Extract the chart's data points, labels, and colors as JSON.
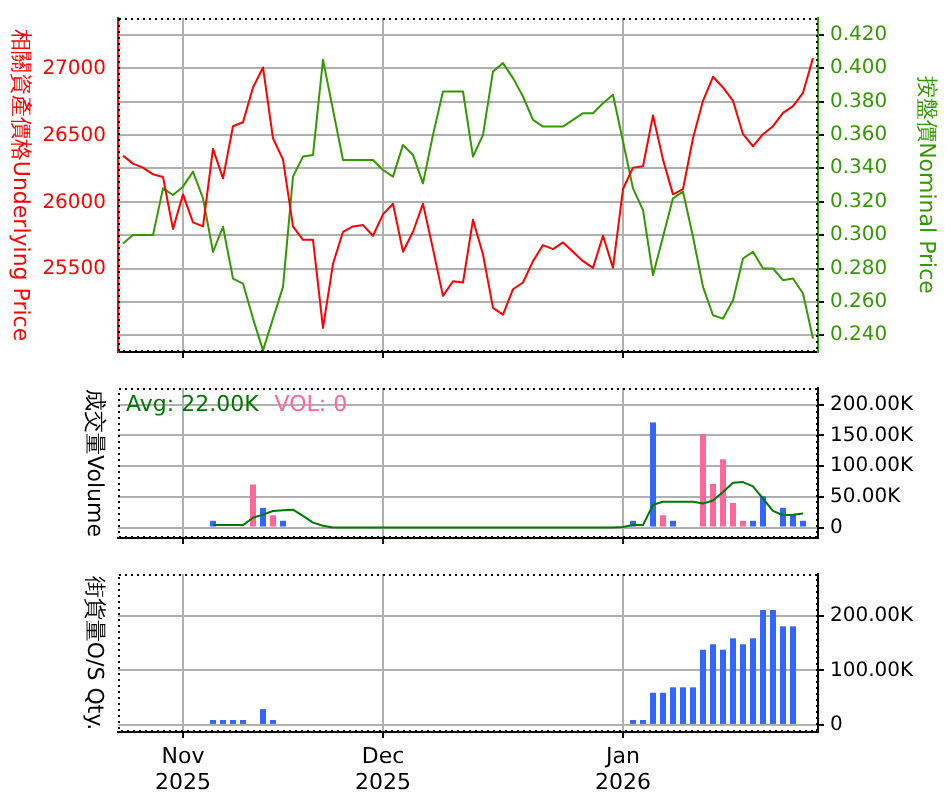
{
  "chart_data": [
    {
      "type": "line",
      "categories": [
        null,
        null,
        null,
        null,
        null,
        null,
        null,
        null,
        null,
        null,
        null,
        null,
        null,
        null,
        null,
        null,
        null,
        null,
        null,
        null,
        null,
        null,
        null,
        null,
        null,
        null,
        null,
        null,
        null,
        null,
        null,
        null,
        null,
        null,
        null,
        null,
        null,
        null,
        null,
        null,
        null,
        null,
        null,
        null,
        null,
        null,
        null,
        null,
        null,
        null,
        null,
        null,
        null,
        null,
        null,
        null,
        null,
        null,
        null,
        null,
        null,
        null,
        null,
        null,
        null,
        null,
        null,
        null,
        null,
        null
      ],
      "series": [
        {
          "color": "#ff0000",
          "values": [
            26350,
            26290,
            26260,
            26210,
            26190,
            25800,
            26060,
            25850,
            25820,
            26400,
            26180,
            26570,
            26600,
            26860,
            27010,
            26480,
            26320,
            25820,
            25720,
            25720,
            25060,
            25540,
            25780,
            25820,
            25830,
            25750,
            25910,
            25990,
            25630,
            25780,
            25990,
            25650,
            25300,
            25410,
            25400,
            25870,
            25610,
            25210,
            25160,
            25350,
            25400,
            25560,
            25680,
            25650,
            25700,
            25630,
            25560,
            25510,
            25750,
            25510,
            26100,
            26260,
            26270,
            26650,
            26320,
            26060,
            26100,
            26480,
            26760,
            26940,
            26860,
            26760,
            26510,
            26420,
            26510,
            26570,
            26670,
            26720,
            26820,
            27080
          ]
        },
        {
          "color": "#339900",
          "axis": "y2",
          "values": [
            0.295,
            0.3,
            0.3,
            0.3,
            0.328,
            0.324,
            0.329,
            0.338,
            0.322,
            0.29,
            0.305,
            0.274,
            0.271,
            0.25,
            0.231,
            0.25,
            0.269,
            0.335,
            0.347,
            0.348,
            0.405,
            0.375,
            0.345,
            0.345,
            0.345,
            0.345,
            0.339,
            0.335,
            0.354,
            0.348,
            0.331,
            0.36,
            0.386,
            0.386,
            0.386,
            0.347,
            0.36,
            0.398,
            0.403,
            0.394,
            0.383,
            0.369,
            0.365,
            0.365,
            0.365,
            0.369,
            0.373,
            0.373,
            0.379,
            0.384,
            0.356,
            0.328,
            0.315,
            0.276,
            0.299,
            0.322,
            0.326,
            0.299,
            0.269,
            0.252,
            0.25,
            0.261,
            0.286,
            0.29,
            0.28,
            0.28,
            0.273,
            0.274,
            0.265,
            0.238
          ]
        }
      ],
      "ylabel": "相關資產價格Underlying Price",
      "y2label": "按盤價Nominal Price",
      "ylim": [
        24880,
        27380
      ],
      "yticks": [
        25500,
        26000,
        26500,
        27000
      ],
      "y2lim": [
        0.23,
        0.43
      ],
      "y2ticks": [
        {
          "value": 0.24,
          "label": "0.240"
        },
        {
          "value": 0.26,
          "label": "0.260"
        },
        {
          "value": 0.28,
          "label": "0.280"
        },
        {
          "value": 0.3,
          "label": "0.300"
        },
        {
          "value": 0.32,
          "label": "0.320"
        },
        {
          "value": 0.34,
          "label": "0.340"
        },
        {
          "value": 0.36,
          "label": "0.360"
        },
        {
          "value": 0.38,
          "label": "0.380"
        },
        {
          "value": 0.4,
          "label": "0.400"
        },
        {
          "value": 0.42,
          "label": "0.420"
        }
      ],
      "grid": true,
      "tick_labels": "y"
    },
    {
      "type": "bar",
      "categories": [
        null,
        null,
        null,
        null,
        null,
        null,
        null,
        null,
        null,
        null,
        null,
        null,
        null,
        null,
        null,
        null,
        null,
        null,
        null,
        null,
        null,
        null,
        null,
        null,
        null,
        null,
        null,
        null,
        null,
        null,
        null,
        null,
        null,
        null,
        null,
        null,
        null,
        null,
        null,
        null,
        null,
        null,
        null,
        null,
        null,
        null,
        null,
        null,
        null,
        null,
        null,
        null,
        null,
        null,
        null,
        null,
        null,
        null,
        null,
        null,
        null,
        null,
        null,
        null,
        null,
        null,
        null,
        null,
        null,
        null
      ],
      "series": [
        {
          "type": "line",
          "name": "Avg: 22.00K",
          "color": "#007700",
          "values": [
            null,
            null,
            null,
            null,
            null,
            null,
            null,
            null,
            null,
            4000,
            4000,
            4000,
            4000,
            16000,
            21000,
            27000,
            28000,
            29000,
            19000,
            8000,
            3000,
            0,
            0,
            0,
            0,
            0,
            0,
            0,
            0,
            0,
            0,
            0,
            0,
            0,
            0,
            0,
            0,
            0,
            0,
            0,
            0,
            0,
            0,
            0,
            0,
            0,
            0,
            0,
            0,
            0,
            1000,
            4000,
            4000,
            37000,
            42000,
            42000,
            42000,
            42000,
            39000,
            44000,
            58000,
            73000,
            74000,
            67000,
            47000,
            27000,
            20000,
            21000,
            23000,
            null
          ]
        },
        {
          "type": "bar",
          "name": "VOL: 0",
          "color": "#ff6699",
          "values": [
            null,
            null,
            null,
            null,
            null,
            null,
            null,
            null,
            null,
            11000,
            null,
            null,
            null,
            70000,
            32000,
            20000,
            11000,
            null,
            null,
            null,
            null,
            null,
            null,
            null,
            null,
            null,
            null,
            null,
            null,
            null,
            null,
            null,
            null,
            null,
            null,
            null,
            null,
            null,
            null,
            null,
            null,
            null,
            null,
            null,
            null,
            null,
            null,
            null,
            null,
            null,
            null,
            11000,
            null,
            171000,
            20000,
            11000,
            null,
            null,
            152000,
            71000,
            111000,
            40000,
            11000,
            11000,
            51000,
            null,
            32000,
            21000,
            11000,
            null
          ],
          "colors": [
            null,
            null,
            null,
            null,
            null,
            null,
            null,
            null,
            null,
            "#3366ff",
            null,
            null,
            null,
            "#ff6699",
            "#3366ff",
            "#ff6699",
            "#3366ff",
            null,
            null,
            null,
            null,
            null,
            null,
            null,
            null,
            null,
            null,
            null,
            null,
            null,
            null,
            null,
            null,
            null,
            null,
            null,
            null,
            null,
            null,
            null,
            null,
            null,
            null,
            null,
            null,
            null,
            null,
            null,
            null,
            null,
            null,
            "#3366ff",
            null,
            "#3366ff",
            "#ff6699",
            "#3366ff",
            null,
            null,
            "#ff6699",
            "#ff6699",
            "#ff6699",
            "#ff6699",
            "#ff6699",
            "#3366ff",
            "#3366ff",
            null,
            "#3366ff",
            "#3366ff",
            "#3366ff",
            null
          ]
        }
      ],
      "ylabel": "成交量Volume",
      "ylim": [
        -17000,
        227000
      ],
      "yticks": [
        0,
        {
          "value": 50000,
          "label": "50.00K"
        },
        {
          "value": 100000,
          "label": "100.00K"
        },
        {
          "value": 150000,
          "label": "150.00K"
        },
        {
          "value": 200000,
          "label": "200.00K"
        }
      ],
      "grid": true,
      "legend": "top left",
      "tick_labels": "y"
    },
    {
      "type": "bar",
      "categories": [
        null,
        null,
        null,
        null,
        null,
        null,
        "Nov 2025",
        null,
        null,
        null,
        null,
        null,
        null,
        null,
        null,
        null,
        null,
        null,
        null,
        null,
        null,
        null,
        null,
        null,
        null,
        null,
        "Dec 2025",
        null,
        null,
        null,
        null,
        null,
        null,
        null,
        null,
        null,
        null,
        null,
        null,
        null,
        null,
        null,
        null,
        null,
        null,
        null,
        null,
        null,
        null,
        null,
        "Jan 2026",
        null,
        null,
        null,
        null,
        null,
        null,
        null,
        null,
        null,
        null,
        null,
        null,
        null,
        null,
        null,
        null,
        null,
        null,
        null
      ],
      "series": [
        {
          "color": "#3366ff",
          "values": [
            null,
            null,
            null,
            null,
            null,
            null,
            null,
            null,
            null,
            9000,
            9000,
            9000,
            9000,
            null,
            29000,
            9000,
            null,
            null,
            null,
            null,
            null,
            null,
            null,
            null,
            null,
            null,
            null,
            null,
            null,
            null,
            null,
            null,
            null,
            null,
            null,
            null,
            null,
            null,
            null,
            null,
            null,
            null,
            null,
            null,
            null,
            null,
            null,
            null,
            null,
            null,
            null,
            9000,
            9000,
            59000,
            59000,
            69000,
            69000,
            69000,
            138000,
            148000,
            138000,
            159000,
            148000,
            159000,
            211000,
            211000,
            181000,
            181000,
            null,
            null
          ]
        }
      ],
      "ylabel": "街貨量O/S Qty.",
      "ylim": [
        -13000,
        277000
      ],
      "yticks": [
        0,
        {
          "value": 100000,
          "label": "100.00K"
        },
        {
          "value": 200000,
          "label": "200.00K"
        }
      ],
      "grid": true
    }
  ]
}
